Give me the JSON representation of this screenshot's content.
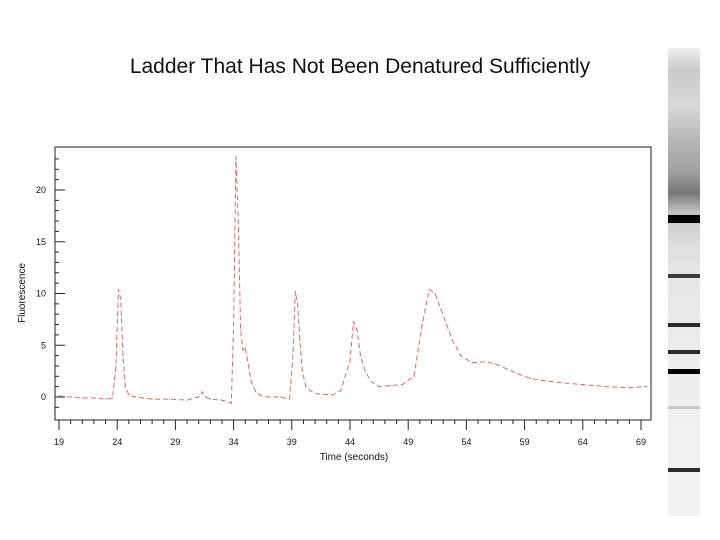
{
  "title": "Ladder That Has Not Been Denatured Sufficiently",
  "chart_data": {
    "type": "line",
    "xlabel": "Time (seconds)",
    "ylabel": "Fluorescence",
    "xlim": [
      19,
      70
    ],
    "ylim": [
      -2,
      24
    ],
    "xticks": [
      "19",
      "24",
      "29",
      "34",
      "39",
      "44",
      "49",
      "54",
      "59",
      "64",
      "69"
    ],
    "yticks": [
      "0",
      "5",
      "10",
      "15",
      "20"
    ],
    "grid": false,
    "line_color": "#e06666",
    "line_style": "dashed",
    "series": [
      {
        "x": [
          19,
          20,
          21,
          22,
          23,
          23.6,
          23.9,
          24.1,
          24.3,
          24.5,
          24.7,
          25.0,
          25.5,
          27,
          28.5,
          30,
          31,
          31.3,
          31.6,
          32,
          33,
          33.8,
          34.0,
          34.2,
          34.4,
          34.6,
          34.8,
          35.0,
          35.2,
          35.5,
          35.9,
          36.4,
          37,
          38,
          38.8,
          39.1,
          39.3,
          39.5,
          39.7,
          39.9,
          40.2,
          40.6,
          41.2,
          42.5,
          43.2,
          44.0,
          44.3,
          44.6,
          44.9,
          45.3,
          45.8,
          46.5,
          47.5,
          48.5,
          49.5,
          50.2,
          50.8,
          51.3,
          51.8,
          52.3,
          52.8,
          53.5,
          54.5,
          55.5,
          56.5,
          57.5,
          58.5,
          59.5,
          60.5,
          62,
          64,
          66,
          68,
          69.5
        ],
        "y": [
          0.1,
          0.0,
          -0.1,
          -0.1,
          -0.2,
          -0.1,
          3.0,
          10.4,
          9.5,
          4.0,
          1.0,
          0.2,
          0.0,
          -0.2,
          -0.2,
          -0.3,
          0.0,
          0.5,
          0.0,
          -0.2,
          -0.3,
          -0.6,
          7.0,
          23.2,
          17.0,
          6.5,
          4.5,
          4.8,
          3.5,
          1.5,
          0.5,
          0.1,
          0.0,
          0.0,
          -0.2,
          4.0,
          10.2,
          9.0,
          5.5,
          2.5,
          1.0,
          0.6,
          0.3,
          0.2,
          0.6,
          3.5,
          7.3,
          6.5,
          4.0,
          2.5,
          1.5,
          1.0,
          1.1,
          1.2,
          2.0,
          7.0,
          10.4,
          10.0,
          8.5,
          7.0,
          5.5,
          4.0,
          3.3,
          3.4,
          3.2,
          2.7,
          2.2,
          1.8,
          1.6,
          1.4,
          1.2,
          1.0,
          0.9,
          1.0
        ]
      }
    ]
  },
  "gel": {
    "label": "",
    "band_colors": [
      "#000000",
      "#2a2a2a",
      "#3c3c3c",
      "#555555"
    ]
  }
}
